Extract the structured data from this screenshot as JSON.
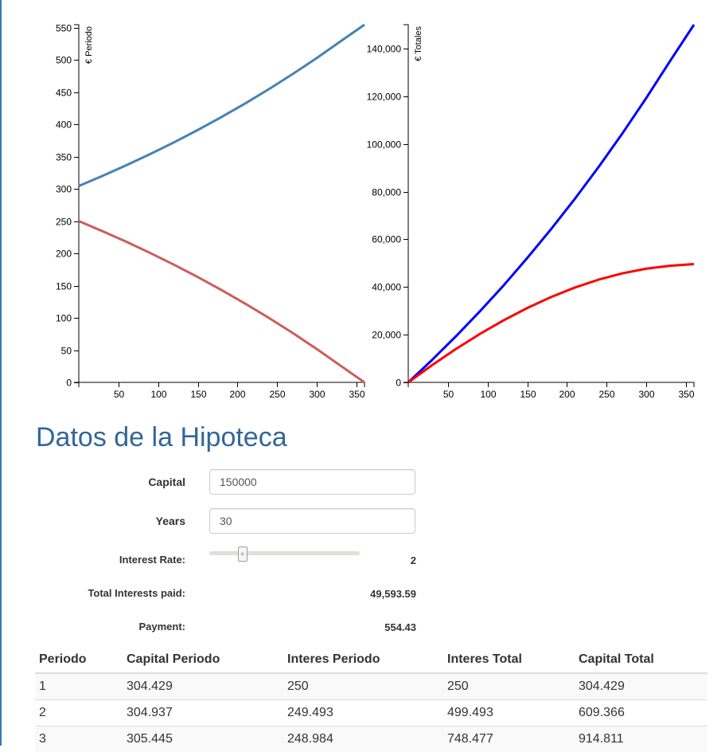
{
  "chart_data": [
    {
      "type": "line",
      "title": "",
      "xlabel": "",
      "ylabel": "€ Periodo",
      "xlim": [
        0,
        360
      ],
      "ylim": [
        0,
        554.43
      ],
      "x_ticks": [
        50,
        100,
        150,
        200,
        250,
        300,
        350
      ],
      "y_ticks": [
        0,
        50,
        100,
        150,
        200,
        250,
        300,
        350,
        400,
        450,
        500,
        550
      ],
      "series": [
        {
          "color": "#4682b4",
          "x": [
            0,
            30,
            60,
            90,
            120,
            150,
            180,
            210,
            240,
            270,
            300,
            330,
            360
          ],
          "y": [
            304.43,
            320.1,
            336.6,
            353.9,
            372.1,
            391.3,
            411.4,
            432.6,
            454.9,
            478.3,
            502.9,
            528.8,
            554.43
          ]
        },
        {
          "color": "#cd5c5c",
          "x": [
            0,
            30,
            60,
            90,
            120,
            150,
            180,
            210,
            240,
            270,
            300,
            330,
            360
          ],
          "y": [
            250,
            234.3,
            217.9,
            200.6,
            182.4,
            163.2,
            143.0,
            121.8,
            99.6,
            76.2,
            51.6,
            25.7,
            0
          ]
        }
      ]
    },
    {
      "type": "line",
      "title": "",
      "xlabel": "",
      "ylabel": "€ Totales",
      "xlim": [
        0,
        360
      ],
      "ylim": [
        0,
        150000
      ],
      "x_ticks": [
        50,
        100,
        150,
        200,
        250,
        300,
        350
      ],
      "y_ticks": [
        0,
        20000,
        40000,
        60000,
        80000,
        100000,
        120000,
        140000
      ],
      "series": [
        {
          "color": "#0000ff",
          "x": [
            0,
            30,
            60,
            90,
            120,
            150,
            180,
            210,
            240,
            270,
            300,
            330,
            360
          ],
          "y": [
            0,
            9400,
            19300,
            29700,
            40600,
            52200,
            64300,
            77000,
            90400,
            104500,
            119300,
            134800,
            150000
          ]
        },
        {
          "color": "#ff0000",
          "x": [
            0,
            30,
            60,
            90,
            120,
            150,
            180,
            210,
            240,
            270,
            300,
            330,
            360
          ],
          "y": [
            0,
            7230,
            13990,
            20260,
            26000,
            31200,
            35800,
            39780,
            43100,
            45750,
            47690,
            48900,
            49594
          ]
        }
      ]
    }
  ],
  "title": "Datos de la Hipoteca",
  "form": {
    "capital_label": "Capital",
    "capital_value": "150000",
    "years_label": "Years",
    "years_value": "30",
    "rate_label": "Interest Rate:",
    "rate_value": "2",
    "rate_fraction": 0.22,
    "total_interest_label": "Total Interests paid:",
    "total_interest_value": "49,593.59",
    "payment_label": "Payment:",
    "payment_value": "554.43"
  },
  "table": {
    "headers": [
      "Periodo",
      "Capital Periodo",
      "Interes Periodo",
      "Interes Total",
      "Capital Total"
    ],
    "rows": [
      [
        "1",
        "304.429",
        "250",
        "250",
        "304.429"
      ],
      [
        "2",
        "304.937",
        "249.493",
        "499.493",
        "609.366"
      ],
      [
        "3",
        "305.445",
        "248.984",
        "748.477",
        "914.811"
      ]
    ]
  },
  "colors": {
    "title": "#336699",
    "left_rule": "#337ab7"
  }
}
